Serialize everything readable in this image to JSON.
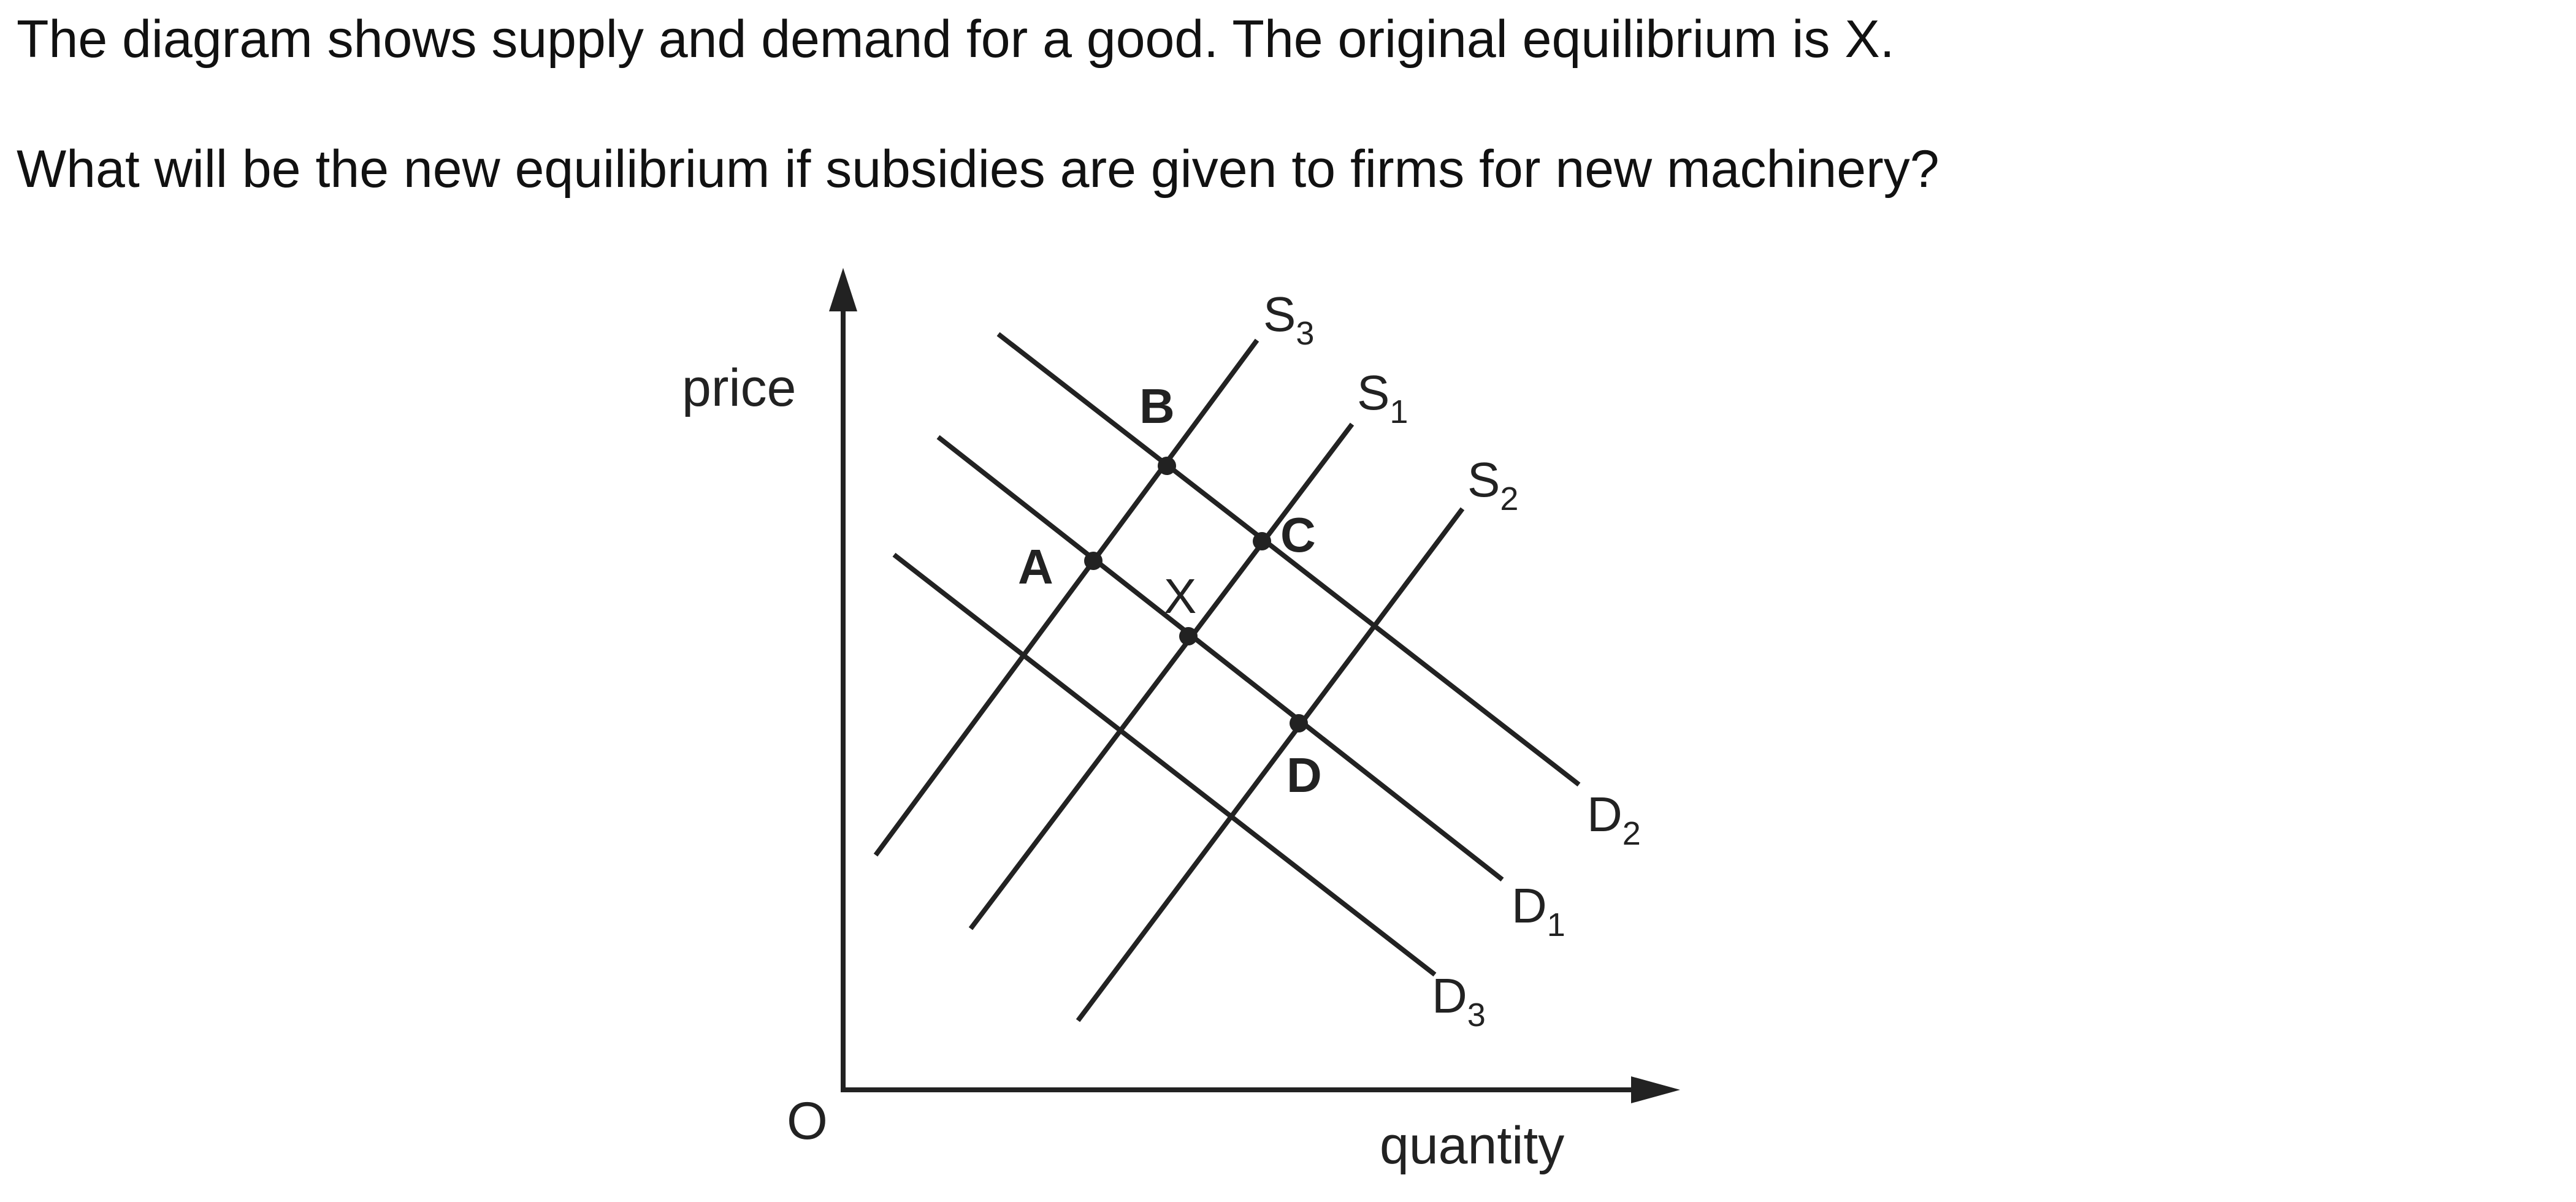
{
  "question": {
    "line1": "The diagram shows supply and demand for a good. The original equilibrium is X.",
    "line2": "What will be the new equilibrium if subsidies are given to firms for new machinery?"
  },
  "diagram": {
    "axes": {
      "y_label": "price",
      "x_label": "quantity",
      "origin_label": "O"
    },
    "supply_curves": [
      {
        "base": "S",
        "sub": "3"
      },
      {
        "base": "S",
        "sub": "1"
      },
      {
        "base": "S",
        "sub": "2"
      }
    ],
    "demand_curves": [
      {
        "base": "D",
        "sub": "2"
      },
      {
        "base": "D",
        "sub": "1"
      },
      {
        "base": "D",
        "sub": "3"
      }
    ],
    "points": {
      "A": "A",
      "B": "B",
      "C": "C",
      "D": "D",
      "X": "X"
    },
    "colors": {
      "ink": "#222222",
      "background": "#ffffff"
    }
  }
}
